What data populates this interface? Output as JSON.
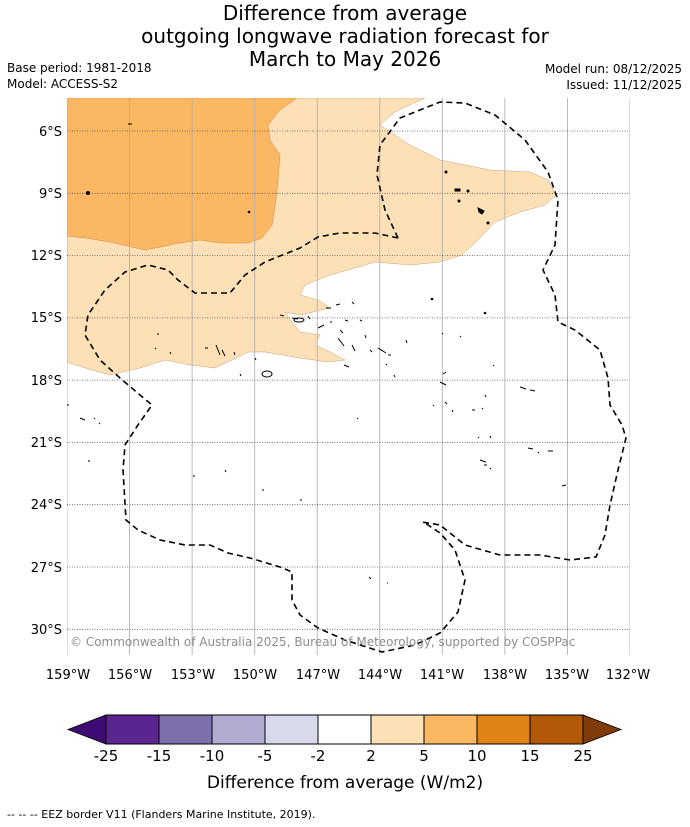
{
  "header": {
    "title_line1": "Difference from average",
    "title_line2": "outgoing longwave radiation forecast for",
    "title_line3": "March to May 2026",
    "base_period": "Base period: 1981-2018",
    "model": "Model: ACCESS-S2",
    "model_run": "Model run: 08/12/2025",
    "issued": "Issued: 11/12/2025"
  },
  "map": {
    "lon_labels": [
      "159°W",
      "156°W",
      "153°W",
      "150°W",
      "147°W",
      "144°W",
      "141°W",
      "138°W",
      "135°W",
      "132°W"
    ],
    "lat_labels": [
      "6°S",
      "9°S",
      "12°S",
      "15°S",
      "18°S",
      "21°S",
      "24°S",
      "27°S",
      "30°S"
    ],
    "copyright": "© Commonwealth of Australia 2025, Bureau of Meteorology, supported by COSPPac",
    "colors": {
      "pos_2_5": "#fde0b6",
      "pos_5_10": "#fcb763",
      "border": "#000000"
    }
  },
  "colorbar": {
    "ticks": [
      "-25",
      "-15",
      "-10",
      "-5",
      "-2",
      "2",
      "5",
      "10",
      "15",
      "25"
    ],
    "colors": [
      "#3f0a73",
      "#5b2590",
      "#7e70ac",
      "#b2abd2",
      "#d8daeb",
      "#ffffff",
      "#fde0b6",
      "#fcb763",
      "#e08214",
      "#b35806",
      "#7f3b08"
    ],
    "label": "Difference from average (W/m2)"
  },
  "footer": {
    "legend": "--  --  -- EEZ border V11 (Flanders Marine Institute, 2019)."
  }
}
